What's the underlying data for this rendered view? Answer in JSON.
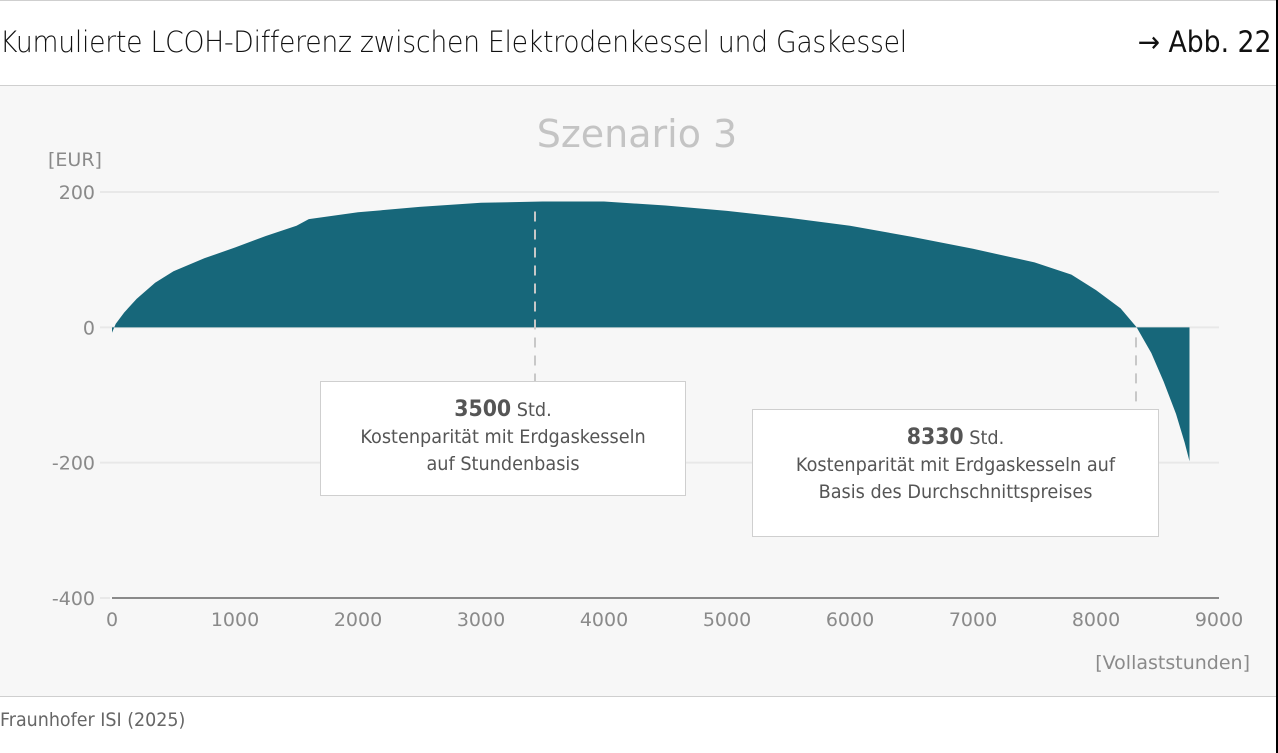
{
  "header": {
    "title": "Kumulierte LCOH-Differenz zwischen Elektrodenkessel und Gaskessel",
    "figure_ref": "→ Abb. 22"
  },
  "footer": {
    "source": "Fraunhofer ISI (2025)"
  },
  "colors": {
    "area_fill": "#17677A",
    "gridline": "#e8e8e8",
    "axis_line": "#8a8a8a",
    "panel_bg": "#f7f7f7",
    "subtitle": "#c4c4c4",
    "tick_label": "#8a8a8a",
    "marker_line": "#c8c8c8"
  },
  "annotations": [
    {
      "value": "3500",
      "unit": "Std.",
      "line1": "Kostenparität mit Erdgaskesseln",
      "line2": "auf Stundenbasis"
    },
    {
      "value": "8330",
      "unit": "Std.",
      "line1": "Kostenparität mit Erdgaskesseln auf",
      "line2": "Basis des Durchschnittspreises"
    }
  ],
  "chart_data": {
    "type": "area",
    "title": "Szenario 3",
    "xlabel": "[Vollaststunden]",
    "ylabel": "[EUR]",
    "xlim": [
      0,
      9000
    ],
    "ylim": [
      -400,
      200
    ],
    "x_ticks": [
      "0",
      "1000",
      "2000",
      "3000",
      "4000",
      "5000",
      "6000",
      "7000",
      "8000",
      "9000"
    ],
    "y_ticks": [
      "200",
      "0",
      "-200",
      "-400"
    ],
    "grid": "horizontal",
    "legend": "none",
    "series": [
      {
        "name": "Kumulierte LCOH-Differenz",
        "x": [
          0,
          30,
          100,
          200,
          350,
          500,
          750,
          1000,
          1250,
          1500,
          1600,
          2000,
          2500,
          3000,
          3500,
          4000,
          4500,
          5000,
          5500,
          6000,
          6500,
          7000,
          7500,
          7800,
          8000,
          8200,
          8330,
          8450,
          8550,
          8650,
          8720,
          8760
        ],
        "values": [
          -8,
          5,
          22,
          42,
          66,
          83,
          102,
          118,
          135,
          150,
          160,
          170,
          178,
          184,
          186,
          186,
          180,
          172,
          162,
          150,
          134,
          116,
          96,
          78,
          55,
          28,
          0,
          -38,
          -80,
          -128,
          -170,
          -198
        ]
      }
    ],
    "markers": [
      {
        "x": 3500,
        "label": "3500 Std. Kostenparität mit Erdgaskesseln auf Stundenbasis",
        "style": "dashed"
      },
      {
        "x": 8330,
        "label": "8330 Std. Kostenparität mit Erdgaskesseln auf Basis des Durchschnittspreises",
        "style": "dashed"
      }
    ]
  }
}
